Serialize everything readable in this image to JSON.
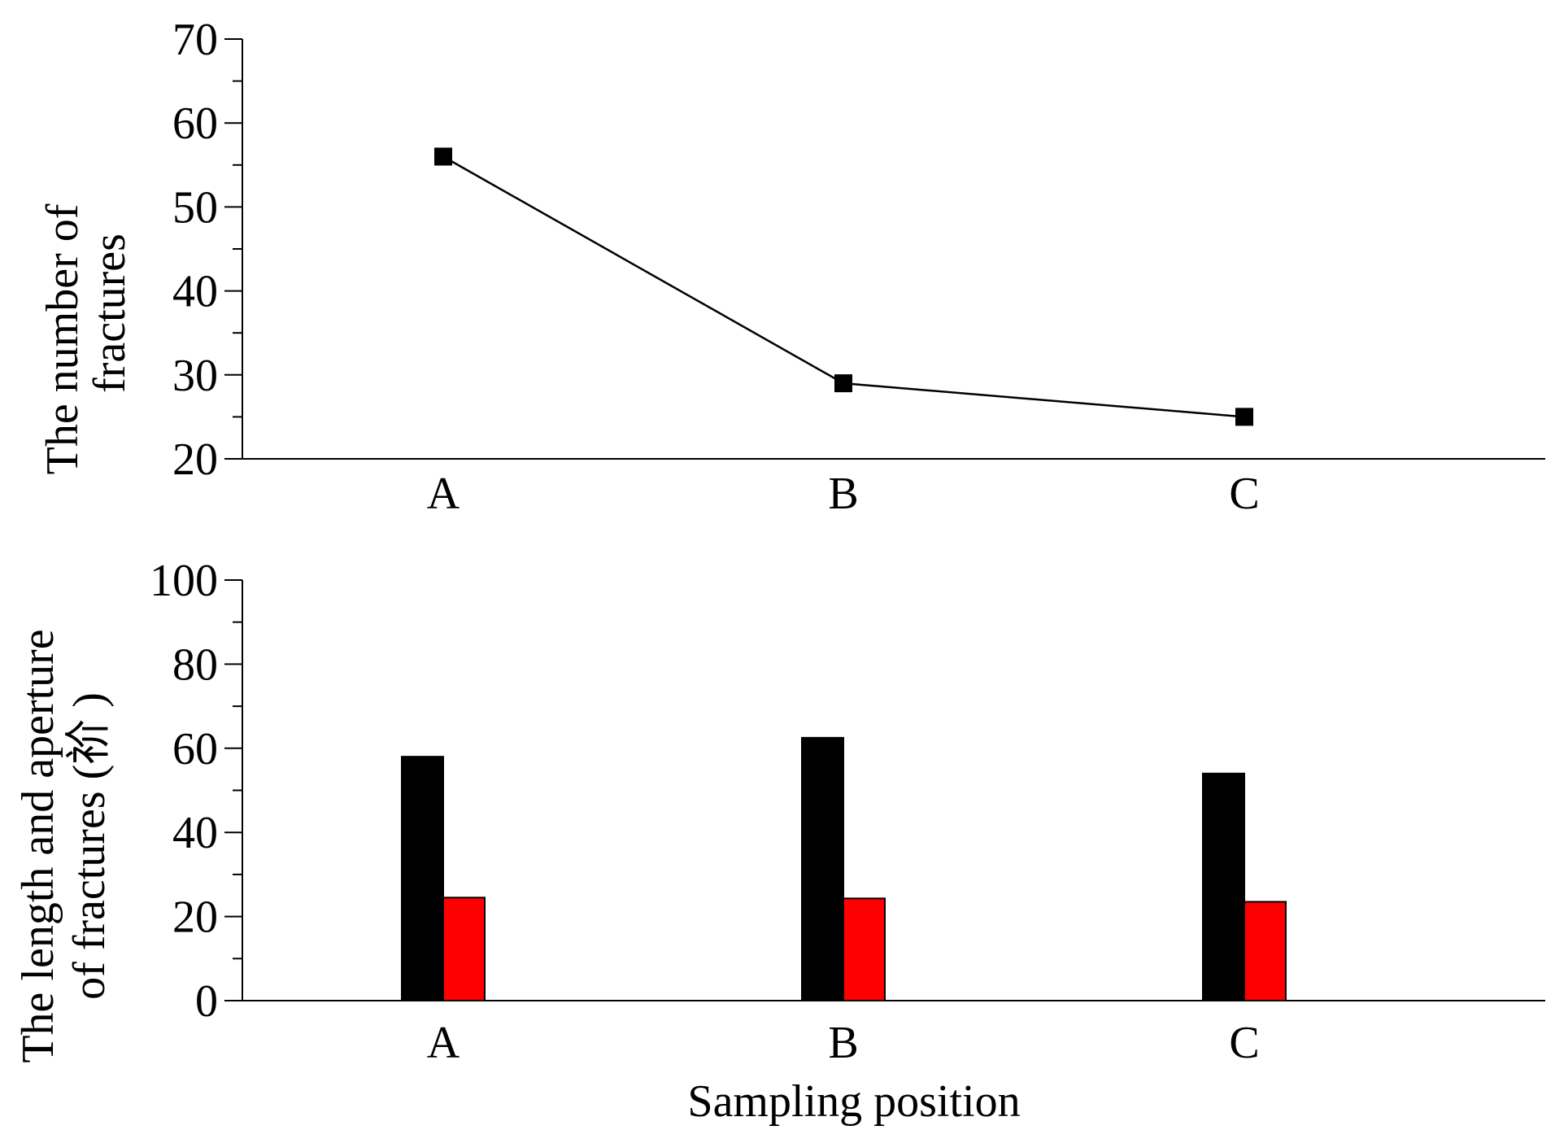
{
  "colors": {
    "line": "#000000",
    "marker": "#000000",
    "bar_series_1": "#000000",
    "bar_series_2": "#ff0000",
    "axis": "#000000",
    "background": "#ffffff"
  },
  "chart_data": [
    {
      "type": "line",
      "categories": [
        "A",
        "B",
        "C"
      ],
      "series": [
        {
          "name": "The number of fractures",
          "values": [
            56,
            29,
            25
          ]
        }
      ],
      "marker": "square",
      "ylabel_lines": [
        "The number of",
        "fractures"
      ],
      "xlabel": "",
      "ylim": [
        20,
        70
      ],
      "yticks": [
        "20",
        "30",
        "40",
        "50",
        "60",
        "70"
      ],
      "ytick_values": [
        20,
        30,
        40,
        50,
        60,
        70
      ],
      "grid": false
    },
    {
      "type": "bar",
      "categories": [
        "A",
        "B",
        "C"
      ],
      "series": [
        {
          "name": "Length",
          "values": [
            58,
            62.5,
            54
          ]
        },
        {
          "name": "Aperture",
          "values": [
            24.5,
            24.3,
            23.5
          ]
        }
      ],
      "ylabel_lines": [
        "The length and aperture",
        "of fractures (祄 )"
      ],
      "xlabel": "Sampling position",
      "ylim": [
        0,
        100
      ],
      "yticks": [
        "0",
        "20",
        "40",
        "60",
        "80",
        "100"
      ],
      "ytick_values": [
        0,
        20,
        40,
        60,
        80,
        100
      ],
      "grid": false
    }
  ]
}
